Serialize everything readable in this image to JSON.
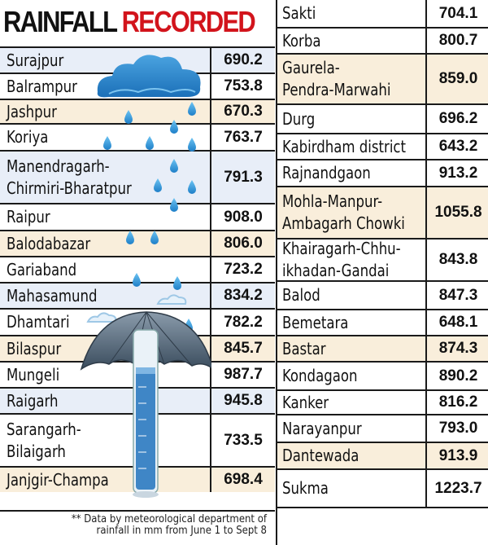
{
  "title": {
    "part1": "RAINFALL",
    "part2": "RECORDED"
  },
  "colors": {
    "title_red": "#d2141c",
    "row_blue": "#e8eef8",
    "row_beige": "#f9eedb"
  },
  "left_rows": [
    {
      "name": [
        "Surajpur"
      ],
      "value": "690.2"
    },
    {
      "name": [
        "Balrampur"
      ],
      "value": "753.8"
    },
    {
      "name": [
        "Jashpur"
      ],
      "value": "670.3"
    },
    {
      "name": [
        "Koriya"
      ],
      "value": "763.7"
    },
    {
      "name": [
        "Manendragarh-",
        "Chirmiri-Bharatpur"
      ],
      "value": "791.3"
    },
    {
      "name": [
        "Raipur"
      ],
      "value": "908.0"
    },
    {
      "name": [
        "Balodabazar"
      ],
      "value": "806.0"
    },
    {
      "name": [
        "Gariaband"
      ],
      "value": "723.2"
    },
    {
      "name": [
        "Mahasamund"
      ],
      "value": "834.2"
    },
    {
      "name": [
        "Dhamtari"
      ],
      "value": "782.2"
    },
    {
      "name": [
        "Bilaspur"
      ],
      "value": "845.7"
    },
    {
      "name": [
        "Mungeli"
      ],
      "value": "987.7"
    },
    {
      "name": [
        "Raigarh"
      ],
      "value": "945.8"
    },
    {
      "name": [
        "Sarangarh-",
        "Bilaigarh"
      ],
      "value": "733.5"
    },
    {
      "name": [
        "Janjgir-Champa"
      ],
      "value": "698.4"
    }
  ],
  "right_rows": [
    {
      "name": [
        "Sakti"
      ],
      "value": "704.1"
    },
    {
      "name": [
        "Korba"
      ],
      "value": "800.7"
    },
    {
      "name": [
        "Gaurela-",
        "Pendra-Marwahi"
      ],
      "value": "859.0"
    },
    {
      "name": [
        "Durg"
      ],
      "value": "696.2"
    },
    {
      "name": [
        "Kabirdham district"
      ],
      "value": "643.2"
    },
    {
      "name": [
        "Rajnandgaon"
      ],
      "value": "913.2"
    },
    {
      "name": [
        "Mohla-Manpur-",
        "Ambagarh Chowki"
      ],
      "value": "1055.8"
    },
    {
      "name": [
        "Khairagarh-Chhu-",
        "ikhadan-Gandai"
      ],
      "value": "843.8"
    },
    {
      "name": [
        "Balod"
      ],
      "value": "847.3"
    },
    {
      "name": [
        "Bemetara"
      ],
      "value": "648.1"
    },
    {
      "name": [
        "Bastar"
      ],
      "value": "874.3"
    },
    {
      "name": [
        "Kondagaon"
      ],
      "value": "890.2"
    },
    {
      "name": [
        "Kanker"
      ],
      "value": "816.2"
    },
    {
      "name": [
        "Narayanpur"
      ],
      "value": "793.0"
    },
    {
      "name": [
        "Dantewada"
      ],
      "value": "913.9"
    },
    {
      "name": [
        "Sukma"
      ],
      "value": "1223.7"
    }
  ],
  "footnote": [
    "** Data by meteorological department of",
    "rainfall in mm from June 1 to Sept 8"
  ],
  "illustration": {
    "icons": [
      "cloud-icon",
      "raindrop-icon",
      "umbrella-icon",
      "rain-gauge-icon"
    ]
  }
}
